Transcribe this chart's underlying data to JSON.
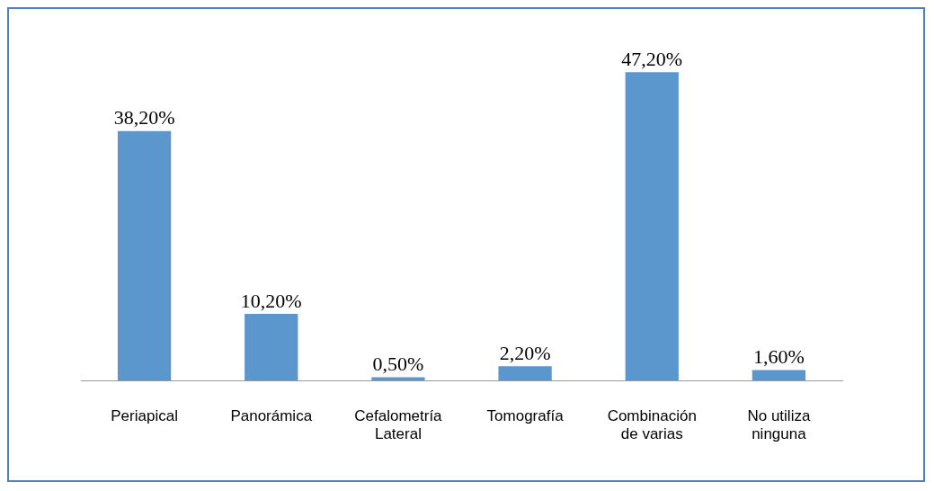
{
  "chart_data": {
    "type": "bar",
    "categories": [
      "Periapical",
      "Panorámica",
      "Cefalometría Lateral",
      "Tomografía",
      "Combinación de varias",
      "No utiliza ninguna"
    ],
    "values": [
      38.2,
      10.2,
      0.5,
      2.2,
      47.2,
      1.6
    ],
    "value_labels": [
      "38,20%",
      "10,20%",
      "0,50%",
      "2,20%",
      "47,20%",
      "1,60%"
    ],
    "color": "#5b96cc",
    "grid": false,
    "legend": false
  }
}
